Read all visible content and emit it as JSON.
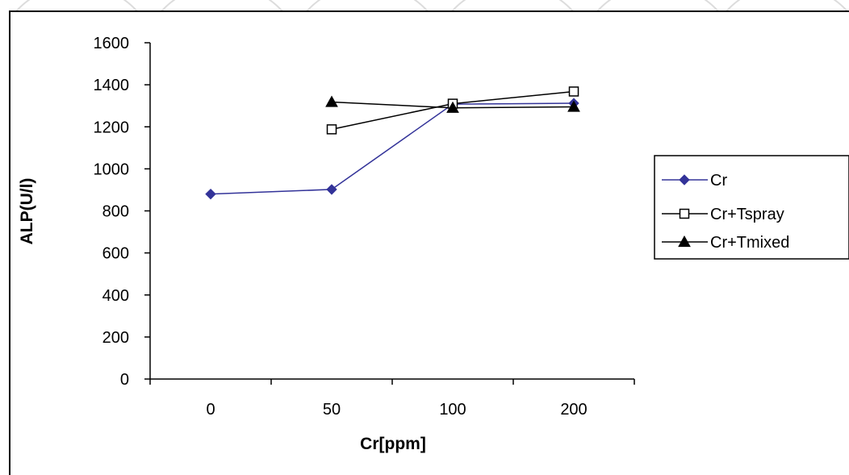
{
  "chart_data": {
    "type": "line",
    "categories": [
      "0",
      "50",
      "100",
      "200"
    ],
    "xlabel": "Cr[ppm]",
    "ylabel": "ALP(U/l)",
    "ylim": [
      0,
      1600
    ],
    "yticks": [
      0,
      200,
      400,
      600,
      800,
      1000,
      1200,
      1400,
      1600
    ],
    "grid": false,
    "legend_position": "right",
    "series": [
      {
        "name": "Cr",
        "values": [
          880,
          902,
          1308,
          1312
        ],
        "color": "#333399",
        "marker": "diamond-filled"
      },
      {
        "name": "Cr+Tspray",
        "values": [
          null,
          1188,
          1310,
          1368
        ],
        "color": "#000000",
        "marker": "square-open"
      },
      {
        "name": "Cr+Tmixed",
        "values": [
          null,
          1318,
          1290,
          1295
        ],
        "color": "#000000",
        "marker": "triangle-filled"
      }
    ]
  }
}
